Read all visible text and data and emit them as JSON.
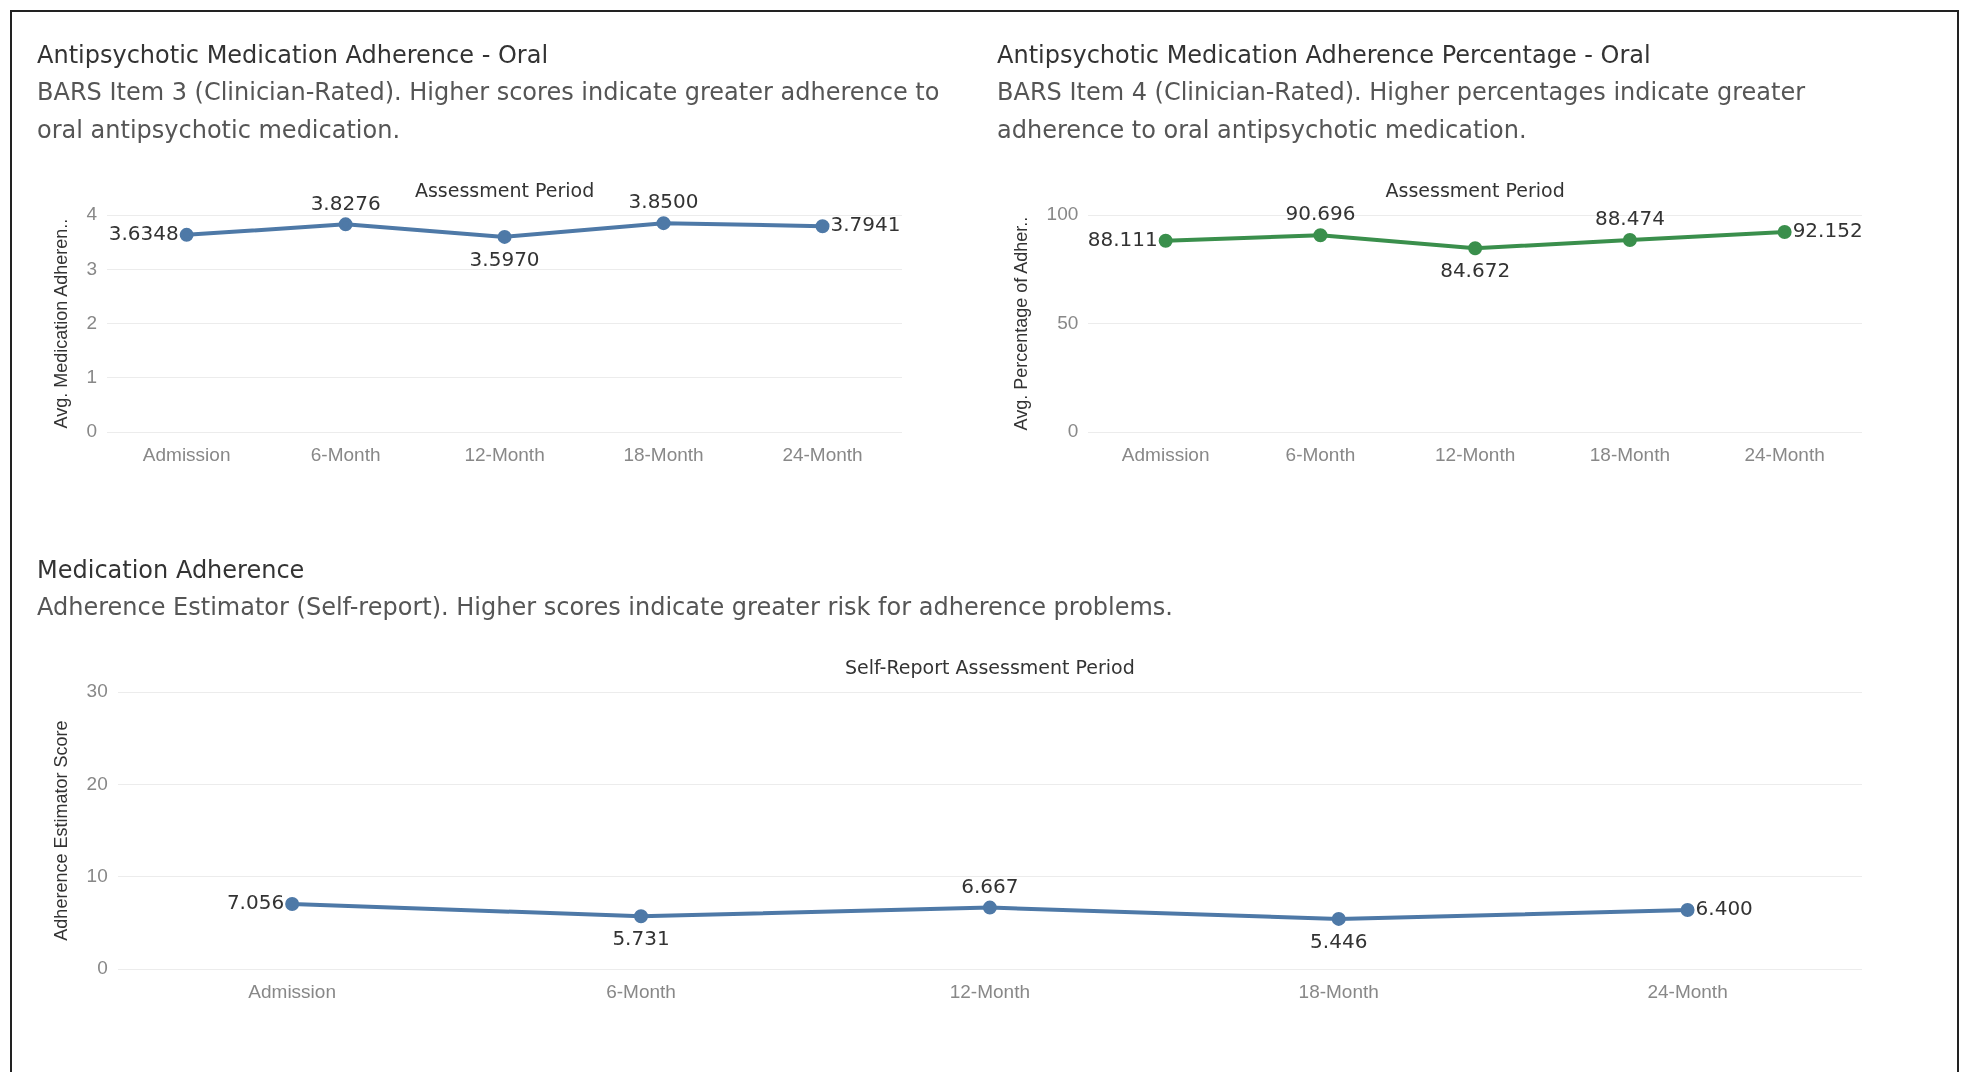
{
  "chart_data": [
    {
      "type": "line",
      "title": "Antipsychotic Medication Adherence - Oral",
      "subtitle": "BARS Item 3 (Clinician-Rated). Higher scores indicate greater adherence to oral antipsychotic medication.",
      "xlabel": "Assessment Period",
      "ylabel": "Avg. Medication Adheren..",
      "categories": [
        "Admission",
        "6-Month",
        "12-Month",
        "18-Month",
        "24-Month"
      ],
      "series": [
        {
          "color": "#4e79a7",
          "values": [
            3.6348,
            3.8276,
            3.597,
            3.85,
            3.7941
          ],
          "value_labels": [
            "3.6348",
            "3.8276",
            "3.5970",
            "3.8500",
            "3.7941"
          ]
        }
      ],
      "ylim": [
        0,
        4
      ],
      "yticks": [
        0,
        1,
        2,
        3,
        4
      ],
      "grid": "y",
      "marker": "circle"
    },
    {
      "type": "line",
      "title": "Antipsychotic Medication Adherence Percentage - Oral",
      "subtitle": "BARS Item 4 (Clinician-Rated). Higher percentages indicate greater adherence to oral antipsychotic medication.",
      "xlabel": "Assessment Period",
      "ylabel": "Avg. Percentage of Adher..",
      "categories": [
        "Admission",
        "6-Month",
        "12-Month",
        "18-Month",
        "24-Month"
      ],
      "series": [
        {
          "color": "#3a8f4c",
          "values": [
            88.111,
            90.696,
            84.672,
            88.474,
            92.152
          ],
          "value_labels": [
            "88.111",
            "90.696",
            "84.672",
            "88.474",
            "92.152"
          ]
        }
      ],
      "ylim": [
        0,
        100
      ],
      "yticks": [
        0,
        50,
        100
      ],
      "grid": "y",
      "marker": "circle"
    },
    {
      "type": "line",
      "title": "Medication Adherence",
      "subtitle": "Adherence Estimator (Self-report). Higher scores indicate greater risk for adherence problems.",
      "xlabel": "Self-Report Assessment Period",
      "ylabel": "Adherence Estimator Score",
      "categories": [
        "Admission",
        "6-Month",
        "12-Month",
        "18-Month",
        "24-Month"
      ],
      "series": [
        {
          "color": "#4e79a7",
          "values": [
            7.056,
            5.731,
            6.667,
            5.446,
            6.4
          ],
          "value_labels": [
            "7.056",
            "5.731",
            "6.667",
            "5.446",
            "6.400"
          ]
        }
      ],
      "ylim": [
        0,
        30
      ],
      "yticks": [
        0,
        10,
        20,
        30
      ],
      "grid": "y",
      "marker": "circle"
    }
  ]
}
